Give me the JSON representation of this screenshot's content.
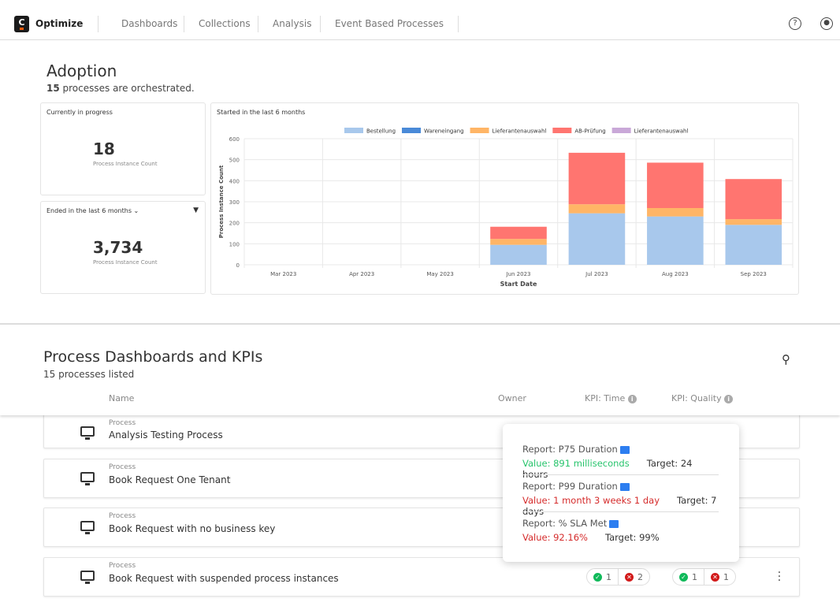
{
  "header": {
    "logo_letter": "C",
    "app": "Optimize",
    "nav": [
      "Dashboards",
      "Collections",
      "Analysis",
      "Event Based Processes"
    ],
    "icons": [
      "help-icon",
      "user-icon"
    ]
  },
  "adoption": {
    "title": "Adoption",
    "count": "15",
    "subtitle": " processes are orchestrated.",
    "in_progress": {
      "title": "Currently in progress",
      "value": "18",
      "label": "Process Instance Count"
    },
    "ended": {
      "title": "Ended in the last 6 months",
      "value": "3,734",
      "label": "Process Instance Count"
    },
    "chart_title": "Started in the last 6 months"
  },
  "chart_data": {
    "type": "bar",
    "stacked": true,
    "title": "Started in the last 6 months",
    "xlabel": "Start Date",
    "ylabel": "Process Instance Count",
    "ylim": [
      0,
      600
    ],
    "yticks": [
      0,
      100,
      200,
      300,
      400,
      500,
      600
    ],
    "grid": true,
    "legend": "top",
    "categories": [
      "Mar 2023",
      "Apr 2023",
      "May 2023",
      "Jun 2023",
      "Jul 2023",
      "Aug 2023",
      "Sep 2023"
    ],
    "series": [
      {
        "name": "Bestellung",
        "color": "#a8c8ec",
        "values": [
          0,
          0,
          0,
          95,
          245,
          230,
          190
        ]
      },
      {
        "name": "Wareneingang",
        "color": "#4a8ad8",
        "values": [
          0,
          0,
          0,
          0,
          0,
          0,
          0
        ]
      },
      {
        "name": "Lieferantenauswahl",
        "color": "#ffb566",
        "values": [
          0,
          0,
          0,
          28,
          43,
          40,
          27
        ]
      },
      {
        "name": "AB-Prüfung",
        "color": "#ff7570",
        "values": [
          0,
          0,
          0,
          58,
          245,
          216,
          191
        ]
      },
      {
        "name": "Lieferantenauswahl",
        "color": "#c9a8d8",
        "values": [
          0,
          0,
          0,
          0,
          0,
          0,
          0
        ]
      }
    ]
  },
  "processes": {
    "title": "Process Dashboards and KPIs",
    "subtitle": "15 processes listed",
    "columns": {
      "name": "Name",
      "owner": "Owner",
      "kpi_time": "KPI: Time",
      "kpi_quality": "KPI: Quality"
    },
    "rows": [
      {
        "type": "Process",
        "name": "Analysis Testing Process"
      },
      {
        "type": "Process",
        "name": "Book Request One Tenant"
      },
      {
        "type": "Process",
        "name": "Book Request with no business key"
      },
      {
        "type": "Process",
        "name": "Book Request with suspended process instances",
        "time_ok": "1",
        "time_bad": "2",
        "quality_ok": "1",
        "quality_bad": "1"
      }
    ]
  },
  "tooltip": [
    {
      "report": "Report: P75 Duration",
      "value": "Value: 891 milliseconds",
      "target": "Target: 24 hours",
      "status": "good"
    },
    {
      "report": "Report: P99 Duration",
      "value": "Value: 1 month 3 weeks 1 day",
      "target": "Target: 7 days",
      "status": "bad"
    },
    {
      "report": "Report: % SLA Met",
      "value": "Value: 92.16%",
      "target": "Target: 99%",
      "status": "bad"
    }
  ]
}
